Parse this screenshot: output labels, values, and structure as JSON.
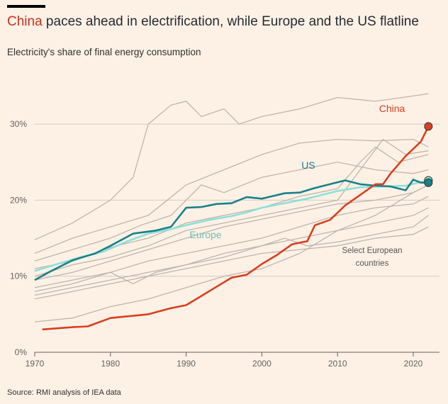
{
  "title": {
    "highlight": "China",
    "rest": " paces ahead in electrification, while Europe and the US flatline"
  },
  "subtitle": "Electricity's share of final energy consumption",
  "source": "Source: RMI analysis of IEA data",
  "chart_data": {
    "type": "line",
    "xlim": [
      1970,
      2024
    ],
    "ylim": [
      0,
      35
    ],
    "x_ticks": [
      1970,
      1980,
      1990,
      2000,
      2010,
      2020
    ],
    "x_tick_labels": [
      "1970",
      "1980",
      "1990",
      "2000",
      "2010",
      "2020"
    ],
    "y_ticks": [
      0,
      10,
      20,
      30
    ],
    "y_tick_labels": [
      "0%",
      "10%",
      "20%",
      "30%"
    ],
    "grid": "horizontal",
    "colors": {
      "China": "#d9401f",
      "US": "#1a8188",
      "Europe": "#8fe0d9",
      "countries": "#bdb5ad"
    },
    "annotations": {
      "china": "China",
      "us": "US",
      "europe": "Europe",
      "countries_1": "Select European",
      "countries_2": "countries"
    },
    "series": [
      {
        "name": "China",
        "points": [
          [
            1971,
            3.0
          ],
          [
            1975,
            3.3
          ],
          [
            1977,
            3.4
          ],
          [
            1980,
            4.5
          ],
          [
            1985,
            5.0
          ],
          [
            1988,
            5.8
          ],
          [
            1990,
            6.2
          ],
          [
            1992,
            7.4
          ],
          [
            1994,
            8.6
          ],
          [
            1996,
            9.8
          ],
          [
            1998,
            10.2
          ],
          [
            2000,
            11.6
          ],
          [
            2002,
            12.8
          ],
          [
            2004,
            14.2
          ],
          [
            2006,
            14.6
          ],
          [
            2007,
            16.7
          ],
          [
            2009,
            17.4
          ],
          [
            2011,
            19.3
          ],
          [
            2013,
            20.7
          ],
          [
            2015,
            22.1
          ],
          [
            2016,
            22.1
          ],
          [
            2017,
            23.5
          ],
          [
            2019,
            25.8
          ],
          [
            2021,
            27.7
          ],
          [
            2022,
            29.7
          ]
        ]
      },
      {
        "name": "US",
        "points": [
          [
            1970,
            9.5
          ],
          [
            1972,
            10.6
          ],
          [
            1975,
            12.1
          ],
          [
            1978,
            13.0
          ],
          [
            1980,
            14.0
          ],
          [
            1983,
            15.6
          ],
          [
            1986,
            16.0
          ],
          [
            1988,
            16.5
          ],
          [
            1990,
            19.0
          ],
          [
            1992,
            19.1
          ],
          [
            1994,
            19.5
          ],
          [
            1996,
            19.6
          ],
          [
            1998,
            20.4
          ],
          [
            2000,
            20.2
          ],
          [
            2003,
            20.9
          ],
          [
            2005,
            21.0
          ],
          [
            2007,
            21.6
          ],
          [
            2009,
            22.1
          ],
          [
            2011,
            22.6
          ],
          [
            2013,
            22.1
          ],
          [
            2015,
            21.9
          ],
          [
            2017,
            21.8
          ],
          [
            2019,
            21.3
          ],
          [
            2020,
            22.7
          ],
          [
            2021,
            22.3
          ],
          [
            2022,
            22.3
          ]
        ]
      },
      {
        "name": "Europe",
        "points": [
          [
            1970,
            10.7
          ],
          [
            1973,
            11.6
          ],
          [
            1976,
            12.5
          ],
          [
            1979,
            13.2
          ],
          [
            1982,
            14.5
          ],
          [
            1985,
            15.6
          ],
          [
            1988,
            16.2
          ],
          [
            1990,
            16.7
          ],
          [
            1993,
            17.4
          ],
          [
            1996,
            17.9
          ],
          [
            1998,
            18.4
          ],
          [
            2000,
            19.0
          ],
          [
            2003,
            19.6
          ],
          [
            2006,
            20.2
          ],
          [
            2008,
            20.7
          ],
          [
            2010,
            21.2
          ],
          [
            2013,
            21.7
          ],
          [
            2016,
            21.8
          ],
          [
            2019,
            21.9
          ],
          [
            2022,
            22.6
          ]
        ]
      }
    ],
    "countries": [
      [
        [
          1970,
          14.8
        ],
        [
          1975,
          17
        ],
        [
          1980,
          20
        ],
        [
          1983,
          23
        ],
        [
          1985,
          30
        ],
        [
          1988,
          32.5
        ],
        [
          1990,
          33
        ],
        [
          1992,
          31
        ],
        [
          1995,
          32
        ],
        [
          1997,
          30
        ],
        [
          2000,
          31
        ],
        [
          2005,
          32
        ],
        [
          2010,
          33.5
        ],
        [
          2015,
          33
        ],
        [
          2020,
          33.7
        ],
        [
          2022,
          34
        ]
      ],
      [
        [
          1970,
          13
        ],
        [
          1975,
          15
        ],
        [
          1980,
          16.5
        ],
        [
          1985,
          18
        ],
        [
          1990,
          22
        ],
        [
          1995,
          24
        ],
        [
          2000,
          26
        ],
        [
          2005,
          27.5
        ],
        [
          2010,
          28
        ],
        [
          2015,
          27.8
        ],
        [
          2020,
          28
        ],
        [
          2022,
          27
        ]
      ],
      [
        [
          1970,
          12
        ],
        [
          1975,
          13.5
        ],
        [
          1980,
          15
        ],
        [
          1984,
          16.7
        ],
        [
          1988,
          18
        ],
        [
          1992,
          22
        ],
        [
          1995,
          21
        ],
        [
          2000,
          23
        ],
        [
          2005,
          24
        ],
        [
          2010,
          25
        ],
        [
          2015,
          24
        ],
        [
          2020,
          23.5
        ],
        [
          2022,
          24
        ]
      ],
      [
        [
          1970,
          11
        ],
        [
          1975,
          12
        ],
        [
          1980,
          13.8
        ],
        [
          1985,
          15
        ],
        [
          1990,
          17
        ],
        [
          1995,
          18
        ],
        [
          2000,
          19
        ],
        [
          2005,
          20.5
        ],
        [
          2010,
          21.5
        ],
        [
          2013,
          25
        ],
        [
          2015,
          27
        ],
        [
          2018,
          25
        ],
        [
          2022,
          26
        ]
      ],
      [
        [
          1970,
          10
        ],
        [
          1975,
          11.5
        ],
        [
          1980,
          12.5
        ],
        [
          1985,
          14
        ],
        [
          1990,
          16
        ],
        [
          1995,
          17
        ],
        [
          2000,
          18
        ],
        [
          2005,
          19
        ],
        [
          2010,
          20
        ],
        [
          2013,
          24
        ],
        [
          2016,
          28
        ],
        [
          2019,
          26
        ],
        [
          2022,
          26.5
        ]
      ],
      [
        [
          1970,
          9.5
        ],
        [
          1975,
          10.5
        ],
        [
          1980,
          12
        ],
        [
          1985,
          13.5
        ],
        [
          1990,
          15
        ],
        [
          1995,
          16.5
        ],
        [
          2000,
          17.5
        ],
        [
          2005,
          18.5
        ],
        [
          2010,
          19.5
        ],
        [
          2015,
          20
        ],
        [
          2020,
          21
        ],
        [
          2022,
          22
        ]
      ],
      [
        [
          1970,
          8.5
        ],
        [
          1975,
          9.5
        ],
        [
          1980,
          10.5
        ],
        [
          1985,
          12
        ],
        [
          1990,
          13
        ],
        [
          1995,
          14
        ],
        [
          2000,
          15
        ],
        [
          2005,
          16.5
        ],
        [
          2010,
          18
        ],
        [
          2015,
          19
        ],
        [
          2020,
          19.5
        ],
        [
          2022,
          20.5
        ]
      ],
      [
        [
          1970,
          8
        ],
        [
          1975,
          9
        ],
        [
          1980,
          10.5
        ],
        [
          1983,
          9
        ],
        [
          1986,
          10.5
        ],
        [
          1990,
          11.5
        ],
        [
          1995,
          12.5
        ],
        [
          2000,
          14
        ],
        [
          2005,
          15
        ],
        [
          2010,
          16
        ],
        [
          2015,
          17
        ],
        [
          2020,
          18
        ],
        [
          2022,
          19
        ]
      ],
      [
        [
          1970,
          7.5
        ],
        [
          1975,
          8.5
        ],
        [
          1980,
          9.5
        ],
        [
          1985,
          10.5
        ],
        [
          1990,
          11.5
        ],
        [
          1995,
          13
        ],
        [
          2000,
          14
        ],
        [
          2003,
          15
        ],
        [
          2006,
          14
        ],
        [
          2010,
          14.5
        ],
        [
          2015,
          15.5
        ],
        [
          2020,
          16.5
        ],
        [
          2022,
          18
        ]
      ],
      [
        [
          1970,
          7
        ],
        [
          1975,
          8
        ],
        [
          1980,
          9
        ],
        [
          1985,
          10
        ],
        [
          1990,
          11
        ],
        [
          1995,
          12
        ],
        [
          2000,
          13
        ],
        [
          2005,
          13.5
        ],
        [
          2010,
          14
        ],
        [
          2015,
          15
        ],
        [
          2020,
          15.5
        ],
        [
          2022,
          16.5
        ]
      ],
      [
        [
          1970,
          4
        ],
        [
          1975,
          4.5
        ],
        [
          1980,
          6
        ],
        [
          1985,
          7
        ],
        [
          1990,
          8.5
        ],
        [
          1995,
          10
        ],
        [
          2000,
          11
        ],
        [
          2005,
          13
        ],
        [
          2010,
          16
        ],
        [
          2015,
          18
        ],
        [
          2020,
          21
        ],
        [
          2022,
          22
        ]
      ]
    ]
  }
}
